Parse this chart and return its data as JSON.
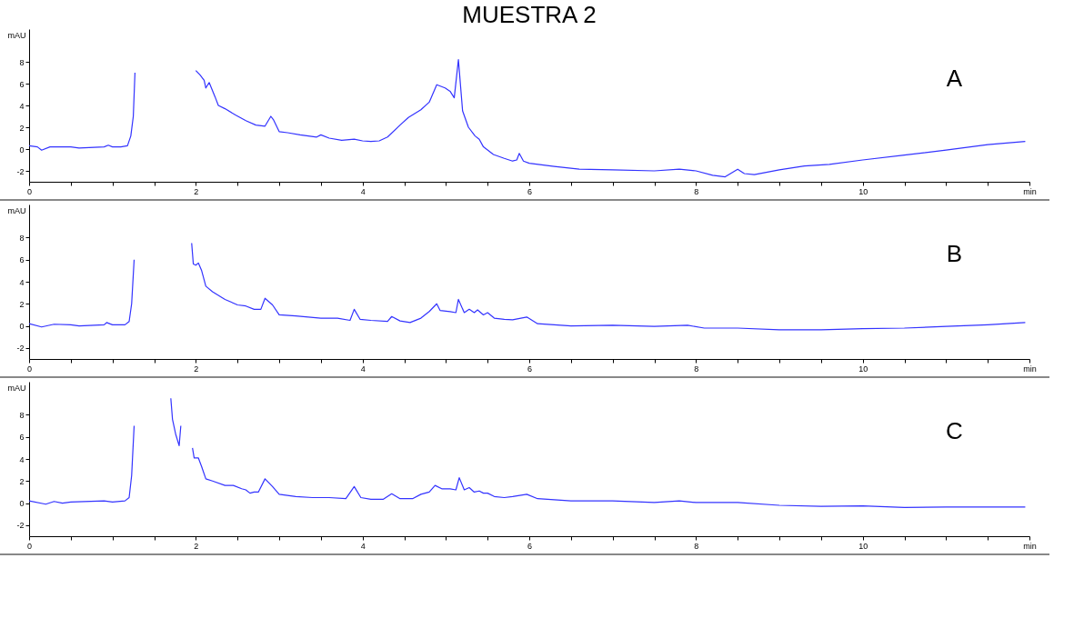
{
  "chart_data": [
    {
      "type": "line",
      "title": "MUESTRA 2",
      "ylabel": "mAU",
      "annotations": [
        "A"
      ],
      "grid": false,
      "marker": "none",
      "line_style": "solid",
      "xlim": [
        0,
        12
      ],
      "ylim": [
        -3,
        11
      ],
      "xticks": [
        0,
        {
          "value": 0.5,
          "label": null
        },
        {
          "value": 1,
          "label": null
        },
        {
          "value": 1.5,
          "label": null
        },
        2,
        {
          "value": 2.5,
          "label": null
        },
        {
          "value": 3,
          "label": null
        },
        {
          "value": 3.5,
          "label": null
        },
        4,
        {
          "value": 4.5,
          "label": null
        },
        {
          "value": 5,
          "label": null
        },
        {
          "value": 5.5,
          "label": null
        },
        6,
        {
          "value": 6.5,
          "label": null
        },
        {
          "value": 7,
          "label": null
        },
        {
          "value": 7.5,
          "label": null
        },
        8,
        {
          "value": 8.5,
          "label": null
        },
        {
          "value": 9,
          "label": null
        },
        {
          "value": 9.5,
          "label": null
        },
        10,
        {
          "value": 10.5,
          "label": null
        },
        {
          "value": 11,
          "label": null
        },
        {
          "value": 11.5,
          "label": null
        },
        {
          "value": 12,
          "label": "min"
        }
      ],
      "yticks": [
        -2,
        0,
        2,
        4,
        6,
        8
      ],
      "series": [
        {
          "color": "#3333ff",
          "x": [
            0,
            0.1,
            0.15,
            0.25,
            0.5,
            0.6,
            0.9,
            0.95,
            1.0,
            1.1,
            1.18,
            1.22,
            1.25,
            1.27,
            1.29,
            1.6,
            1.94,
            2.0,
            2.05,
            2.1,
            2.12,
            2.16,
            2.23,
            2.27,
            2.35,
            2.48,
            2.6,
            2.72,
            2.83,
            2.9,
            2.93,
            3.0,
            3.1,
            3.25,
            3.45,
            3.5,
            3.6,
            3.75,
            3.9,
            4.0,
            4.1,
            4.2,
            4.3,
            4.45,
            4.55,
            4.7,
            4.8,
            4.89,
            4.99,
            5.05,
            5.1,
            5.15,
            5.2,
            5.27,
            5.35,
            5.4,
            5.45,
            5.57,
            5.7,
            5.8,
            5.85,
            5.88,
            5.93,
            6.0,
            6.3,
            6.6,
            7.0,
            7.5,
            7.8,
            8.0,
            8.2,
            8.35,
            8.5,
            8.58,
            8.7,
            9.0,
            9.3,
            9.6,
            10.0,
            10.5,
            11.0,
            11.5,
            11.95
          ],
          "values": [
            0.3,
            0.2,
            -0.1,
            0.2,
            0.2,
            0.1,
            0.2,
            0.35,
            0.2,
            0.2,
            0.3,
            1.2,
            3,
            7,
            null,
            null,
            null,
            7.2,
            6.8,
            6.3,
            5.6,
            6.1,
            4.8,
            4.0,
            3.7,
            3.1,
            2.6,
            2.2,
            2.1,
            3.0,
            2.7,
            1.6,
            1.5,
            1.3,
            1.1,
            1.3,
            1.0,
            0.8,
            0.9,
            0.75,
            0.7,
            0.75,
            1.1,
            2.2,
            2.9,
            3.6,
            4.3,
            5.9,
            5.6,
            5.3,
            4.7,
            8.2,
            3.5,
            2.0,
            1.2,
            0.9,
            0.2,
            -0.5,
            -0.85,
            -1.1,
            -1.0,
            -0.4,
            -1.1,
            -1.3,
            -1.6,
            -1.85,
            -1.9,
            -2.0,
            -1.85,
            -2.0,
            -2.4,
            -2.55,
            -1.85,
            -2.25,
            -2.35,
            -1.9,
            -1.55,
            -1.4,
            -1.0,
            -0.55,
            -0.1,
            0.4,
            0.7
          ]
        }
      ]
    },
    {
      "type": "line",
      "ylabel": "mAU",
      "annotations": [
        "B"
      ],
      "grid": false,
      "marker": "none",
      "line_style": "solid",
      "xlim": [
        0,
        12
      ],
      "ylim": [
        -3,
        11
      ],
      "xticks": [
        0,
        {
          "value": 0.5,
          "label": null
        },
        {
          "value": 1,
          "label": null
        },
        {
          "value": 1.5,
          "label": null
        },
        2,
        {
          "value": 2.5,
          "label": null
        },
        {
          "value": 3,
          "label": null
        },
        {
          "value": 3.5,
          "label": null
        },
        4,
        {
          "value": 4.5,
          "label": null
        },
        {
          "value": 5,
          "label": null
        },
        {
          "value": 5.5,
          "label": null
        },
        6,
        {
          "value": 6.5,
          "label": null
        },
        {
          "value": 7,
          "label": null
        },
        {
          "value": 7.5,
          "label": null
        },
        8,
        {
          "value": 8.5,
          "label": null
        },
        {
          "value": 9,
          "label": null
        },
        {
          "value": 9.5,
          "label": null
        },
        10,
        {
          "value": 10.5,
          "label": null
        },
        {
          "value": 11,
          "label": null
        },
        {
          "value": 11.5,
          "label": null
        },
        {
          "value": 12,
          "label": "min"
        }
      ],
      "yticks": [
        -2,
        0,
        2,
        4,
        6,
        8
      ],
      "series": [
        {
          "color": "#3333ff",
          "x": [
            0,
            0.15,
            0.3,
            0.5,
            0.6,
            0.9,
            0.93,
            1.0,
            1.15,
            1.2,
            1.23,
            1.26,
            1.28,
            1.6,
            1.93,
            1.95,
            1.97,
            2.0,
            2.03,
            2.07,
            2.12,
            2.2,
            2.35,
            2.5,
            2.6,
            2.7,
            2.78,
            2.83,
            2.92,
            3.0,
            3.2,
            3.5,
            3.7,
            3.85,
            3.9,
            3.97,
            4.1,
            4.3,
            4.35,
            4.45,
            4.57,
            4.7,
            4.8,
            4.89,
            4.93,
            5.05,
            5.12,
            5.15,
            5.22,
            5.28,
            5.34,
            5.38,
            5.45,
            5.5,
            5.58,
            5.7,
            5.8,
            5.97,
            6.1,
            6.3,
            6.5,
            7.0,
            7.5,
            7.9,
            8.1,
            8.5,
            9.0,
            9.5,
            10.0,
            10.5,
            11.0,
            11.5,
            11.95
          ],
          "values": [
            0.2,
            -0.1,
            0.15,
            0.1,
            0.0,
            0.1,
            0.3,
            0.1,
            0.1,
            0.4,
            2,
            6,
            null,
            null,
            null,
            7.5,
            5.6,
            5.5,
            5.7,
            5.0,
            3.6,
            3.1,
            2.4,
            1.9,
            1.8,
            1.5,
            1.5,
            2.5,
            1.9,
            1.0,
            0.9,
            0.7,
            0.7,
            0.5,
            1.5,
            0.6,
            0.5,
            0.4,
            0.85,
            0.45,
            0.3,
            0.7,
            1.3,
            2.0,
            1.4,
            1.3,
            1.2,
            2.4,
            1.2,
            1.5,
            1.2,
            1.45,
            1.0,
            1.2,
            0.7,
            0.6,
            0.55,
            0.8,
            0.2,
            0.1,
            0.0,
            0.05,
            -0.05,
            0.05,
            -0.2,
            -0.2,
            -0.35,
            -0.35,
            -0.25,
            -0.2,
            -0.05,
            0.1,
            0.3
          ]
        }
      ]
    },
    {
      "type": "line",
      "ylabel": "mAU",
      "annotations": [
        "C"
      ],
      "grid": false,
      "marker": "none",
      "line_style": "solid",
      "xlim": [
        0,
        12
      ],
      "ylim": [
        -3,
        11
      ],
      "xticks": [
        0,
        {
          "value": 0.5,
          "label": null
        },
        {
          "value": 1,
          "label": null
        },
        {
          "value": 1.5,
          "label": null
        },
        2,
        {
          "value": 2.5,
          "label": null
        },
        {
          "value": 3,
          "label": null
        },
        {
          "value": 3.5,
          "label": null
        },
        4,
        {
          "value": 4.5,
          "label": null
        },
        {
          "value": 5,
          "label": null
        },
        {
          "value": 5.5,
          "label": null
        },
        6,
        {
          "value": 6.5,
          "label": null
        },
        {
          "value": 7,
          "label": null
        },
        {
          "value": 7.5,
          "label": null
        },
        8,
        {
          "value": 8.5,
          "label": null
        },
        {
          "value": 9,
          "label": null
        },
        {
          "value": 9.5,
          "label": null
        },
        10,
        {
          "value": 10.5,
          "label": null
        },
        {
          "value": 11,
          "label": null
        },
        {
          "value": 11.5,
          "label": null
        },
        {
          "value": 12,
          "label": "min"
        }
      ],
      "yticks": [
        -2,
        0,
        2,
        4,
        6,
        8
      ],
      "series": [
        {
          "color": "#3333ff",
          "x": [
            0,
            0.2,
            0.3,
            0.4,
            0.5,
            0.9,
            1.0,
            1.15,
            1.2,
            1.23,
            1.26,
            1.29,
            1.5,
            1.68,
            1.7,
            1.72,
            1.76,
            1.8,
            1.82,
            1.84,
            1.88,
            1.93,
            1.96,
            1.98,
            2.03,
            2.07,
            2.12,
            2.2,
            2.35,
            2.45,
            2.55,
            2.6,
            2.65,
            2.7,
            2.75,
            2.83,
            2.92,
            3.0,
            3.2,
            3.4,
            3.6,
            3.8,
            3.9,
            3.98,
            4.1,
            4.25,
            4.35,
            4.45,
            4.6,
            4.7,
            4.8,
            4.87,
            4.95,
            5.05,
            5.12,
            5.16,
            5.22,
            5.28,
            5.34,
            5.4,
            5.45,
            5.5,
            5.58,
            5.7,
            5.8,
            5.97,
            6.1,
            6.5,
            7.0,
            7.5,
            7.8,
            8.0,
            8.5,
            9.0,
            9.5,
            10.0,
            10.5,
            11.0,
            11.5,
            11.95
          ],
          "values": [
            0.2,
            -0.1,
            0.15,
            0.0,
            0.1,
            0.2,
            0.1,
            0.2,
            0.5,
            2.5,
            7,
            null,
            null,
            null,
            9.5,
            7.6,
            6.2,
            5.2,
            7,
            null,
            null,
            null,
            5,
            4.1,
            4.1,
            3.3,
            2.2,
            2.0,
            1.6,
            1.6,
            1.3,
            1.2,
            0.9,
            1.0,
            1.0,
            2.2,
            1.5,
            0.8,
            0.6,
            0.5,
            0.5,
            0.4,
            1.5,
            0.5,
            0.35,
            0.35,
            0.85,
            0.4,
            0.4,
            0.8,
            1.0,
            1.6,
            1.3,
            1.3,
            1.2,
            2.3,
            1.2,
            1.4,
            1.0,
            1.1,
            0.9,
            0.9,
            0.6,
            0.5,
            0.6,
            0.8,
            0.4,
            0.2,
            0.2,
            0.05,
            0.2,
            0.05,
            0.05,
            -0.2,
            -0.3,
            -0.25,
            -0.4,
            -0.35,
            -0.35,
            -0.35
          ]
        }
      ]
    }
  ]
}
